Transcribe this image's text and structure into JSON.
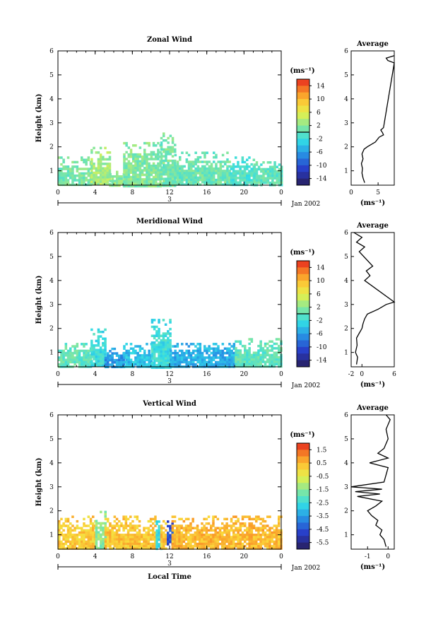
{
  "figure": {
    "date_label": "Jan 2002",
    "day_label": "3",
    "xlabel": "Local Time",
    "avg_title": "Average",
    "avg_xlabel": "(ms⁻¹)",
    "cbar_unit": "(ms⁻¹)",
    "ylabel": "Height (km)"
  },
  "chart_data": [
    {
      "type": "heatmap",
      "title": "Zonal Wind",
      "xlabel": "",
      "ylabel": "Height (km)",
      "xlim": [
        0,
        24
      ],
      "ylim": [
        0.4,
        6
      ],
      "xticks": [
        "0",
        "4",
        "8",
        "12",
        "16",
        "20",
        "0"
      ],
      "yticks": [
        "1",
        "2",
        "3",
        "4",
        "5",
        "6"
      ],
      "colorbar": {
        "ticks": [
          "14",
          "10",
          "6",
          "2",
          "-2",
          "-6",
          "-10",
          "-14"
        ],
        "range": [
          -16,
          16
        ],
        "zero_line": 0
      },
      "data_regions": [
        {
          "x": [
            0,
            3.5
          ],
          "y": [
            0.4,
            1.6
          ],
          "value": 1,
          "note": "mixed cyan-green"
        },
        {
          "x": [
            3.5,
            5.5
          ],
          "y": [
            0.4,
            2.0
          ],
          "value": 3
        },
        {
          "x": [
            5.5,
            7
          ],
          "y": [
            0.4,
            1.0
          ],
          "value": 2
        },
        {
          "x": [
            7,
            11
          ],
          "y": [
            0.4,
            2.2
          ],
          "value": 1.5
        },
        {
          "x": [
            11,
            12.5
          ],
          "y": [
            0.4,
            2.6
          ],
          "value": 1
        },
        {
          "x": [
            12.5,
            18.5
          ],
          "y": [
            0.4,
            1.8
          ],
          "value": 0.5
        },
        {
          "x": [
            18.5,
            21
          ],
          "y": [
            0.4,
            1.6
          ],
          "value": -1
        },
        {
          "x": [
            21,
            24
          ],
          "y": [
            0.4,
            1.4
          ],
          "value": 0
        }
      ],
      "average_profile": {
        "xlabel": "(ms⁻¹)",
        "xlim": [
          0,
          8
        ],
        "xticks": [
          "0",
          "5"
        ],
        "height": [
          0.5,
          0.7,
          0.9,
          1.1,
          1.3,
          1.5,
          1.7,
          1.9,
          2.0,
          2.2,
          2.4,
          2.5,
          2.6,
          2.7,
          2.8,
          5.5,
          5.6,
          5.7,
          5.8
        ],
        "value": [
          2.5,
          2.2,
          2.0,
          2.1,
          1.9,
          2.2,
          2.0,
          2.4,
          3.0,
          4.5,
          5.2,
          6.0,
          5.8,
          5.5,
          6.0,
          8.0,
          6.8,
          6.5,
          8.0
        ]
      }
    },
    {
      "type": "heatmap",
      "title": "Meridional Wind",
      "xlabel": "",
      "ylabel": "Height (km)",
      "xlim": [
        0,
        24
      ],
      "ylim": [
        0.4,
        6
      ],
      "xticks": [
        "0",
        "4",
        "8",
        "12",
        "16",
        "20",
        "0"
      ],
      "yticks": [
        "1",
        "2",
        "3",
        "4",
        "5",
        "6"
      ],
      "colorbar": {
        "ticks": [
          "14",
          "10",
          "6",
          "2",
          "-2",
          "-6",
          "-10",
          "-14"
        ],
        "range": [
          -16,
          16
        ],
        "zero_line": 0
      },
      "data_regions": [
        {
          "x": [
            0,
            3.5
          ],
          "y": [
            0.4,
            1.4
          ],
          "value": 0
        },
        {
          "x": [
            3.5,
            5
          ],
          "y": [
            0.4,
            2.0
          ],
          "value": -2
        },
        {
          "x": [
            5,
            7
          ],
          "y": [
            0.4,
            1.2
          ],
          "value": -6
        },
        {
          "x": [
            7,
            10
          ],
          "y": [
            0.4,
            1.4
          ],
          "value": -4
        },
        {
          "x": [
            10,
            12
          ],
          "y": [
            0.4,
            2.4
          ],
          "value": -2
        },
        {
          "x": [
            12,
            19
          ],
          "y": [
            0.4,
            1.4
          ],
          "value": -5
        },
        {
          "x": [
            19,
            24
          ],
          "y": [
            0.4,
            1.6
          ],
          "value": 0
        }
      ],
      "average_profile": {
        "xlabel": "(ms⁻¹)",
        "xlim": [
          -2,
          6
        ],
        "xticks": [
          "-2",
          "0",
          "6"
        ],
        "height": [
          0.5,
          0.8,
          1.0,
          1.3,
          1.6,
          1.8,
          2.0,
          2.2,
          2.4,
          2.6,
          2.8,
          3.0,
          3.1,
          4.0,
          4.2,
          4.4,
          4.6,
          5.2,
          5.4,
          5.6,
          5.8,
          6.0
        ],
        "value": [
          -1.0,
          -0.8,
          -1.2,
          -0.9,
          -1.0,
          -0.5,
          0.0,
          0.2,
          0.5,
          1.0,
          3.0,
          4.5,
          6.0,
          0.5,
          1.5,
          0.8,
          2.0,
          -0.5,
          0.5,
          -1.0,
          0.0,
          -1.5
        ]
      }
    },
    {
      "type": "heatmap",
      "title": "Vertical Wind",
      "xlabel": "Local Time",
      "ylabel": "Height (km)",
      "xlim": [
        0,
        24
      ],
      "ylim": [
        0.4,
        6
      ],
      "xticks": [
        "0",
        "4",
        "8",
        "12",
        "16",
        "20",
        "0"
      ],
      "yticks": [
        "1",
        "2",
        "3",
        "4",
        "5",
        "6"
      ],
      "colorbar": {
        "ticks": [
          "1.5",
          "0.5",
          "-0.5",
          "-1.5",
          "-2.5",
          "-3.5",
          "-4.5",
          "-5.5"
        ],
        "range": [
          -6,
          2
        ],
        "zero_line": null
      },
      "data_regions": [
        {
          "x": [
            0,
            4
          ],
          "y": [
            0.4,
            1.8
          ],
          "value": 0.2
        },
        {
          "x": [
            4,
            5
          ],
          "y": [
            0.4,
            2.0
          ],
          "value": -1.5
        },
        {
          "x": [
            5,
            10.5
          ],
          "y": [
            0.4,
            1.8
          ],
          "value": 0.3
        },
        {
          "x": [
            10.5,
            11
          ],
          "y": [
            0.4,
            1.6
          ],
          "value": -2.5
        },
        {
          "x": [
            11,
            11.7
          ],
          "y": [
            0.4,
            1.8
          ],
          "value": 0.3
        },
        {
          "x": [
            11.7,
            12.2
          ],
          "y": [
            0.6,
            1.6
          ],
          "value": -4.5
        },
        {
          "x": [
            12.2,
            24
          ],
          "y": [
            0.4,
            1.8
          ],
          "value": 0.5
        }
      ],
      "average_profile": {
        "xlabel": "(ms⁻¹)",
        "xlim": [
          -1.8,
          0.3
        ],
        "xticks": [
          "-1",
          "0"
        ],
        "height": [
          0.5,
          0.8,
          1.0,
          1.2,
          1.4,
          1.6,
          1.8,
          2.0,
          2.2,
          2.4,
          2.6,
          2.7,
          2.8,
          2.9,
          3.0,
          3.2,
          3.5,
          3.8,
          4.0,
          4.2,
          4.4,
          4.6,
          5.0,
          5.4,
          5.8,
          6.0
        ],
        "value": [
          -0.1,
          -0.2,
          -0.4,
          -0.3,
          -0.6,
          -0.5,
          -0.8,
          -1.0,
          -0.6,
          -0.3,
          -1.5,
          -0.4,
          -1.6,
          -0.3,
          -1.8,
          -0.2,
          -0.1,
          0.0,
          -0.9,
          0.0,
          -0.5,
          -0.2,
          0.0,
          -0.1,
          0.1,
          -0.1
        ]
      }
    }
  ]
}
